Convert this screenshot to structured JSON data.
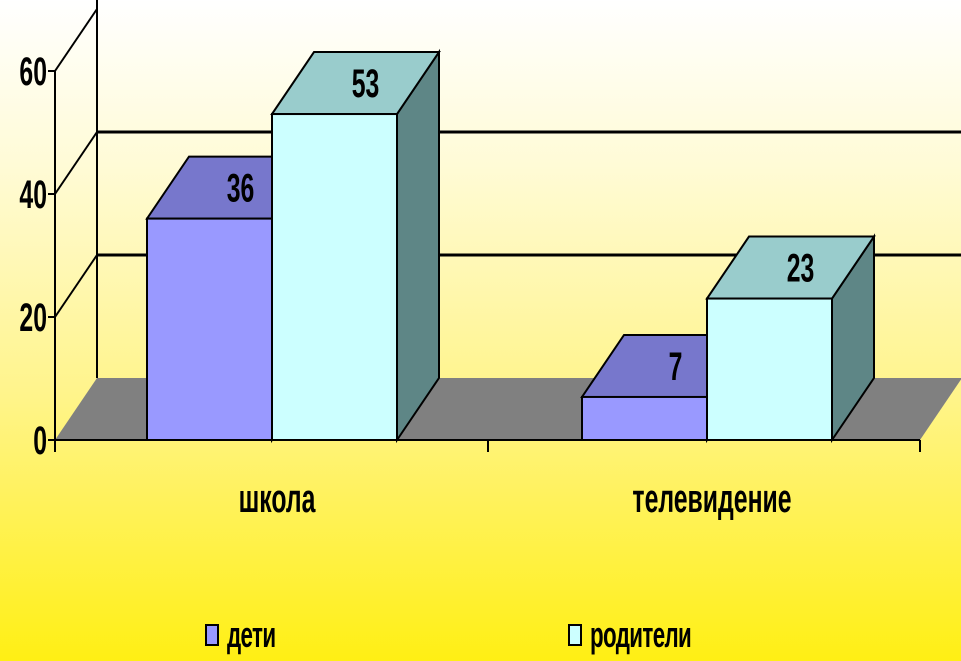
{
  "chart_data": {
    "type": "bar",
    "categories": [
      "школа",
      "телевидение"
    ],
    "series": [
      {
        "name": "дети",
        "values": [
          36,
          7
        ],
        "color": "#9999ff",
        "top_color": "#7777cc"
      },
      {
        "name": "родители",
        "values": [
          53,
          23
        ],
        "color": "#ccffff",
        "top_color": "#99cccc",
        "side_color": "#5e8686"
      }
    ],
    "yticks": [
      "0",
      "20",
      "40",
      "60"
    ],
    "ylim": [
      0,
      60
    ],
    "three_d": true,
    "legend_position": "bottom",
    "wall_color": "#808080",
    "background": "yellow-gradient"
  }
}
